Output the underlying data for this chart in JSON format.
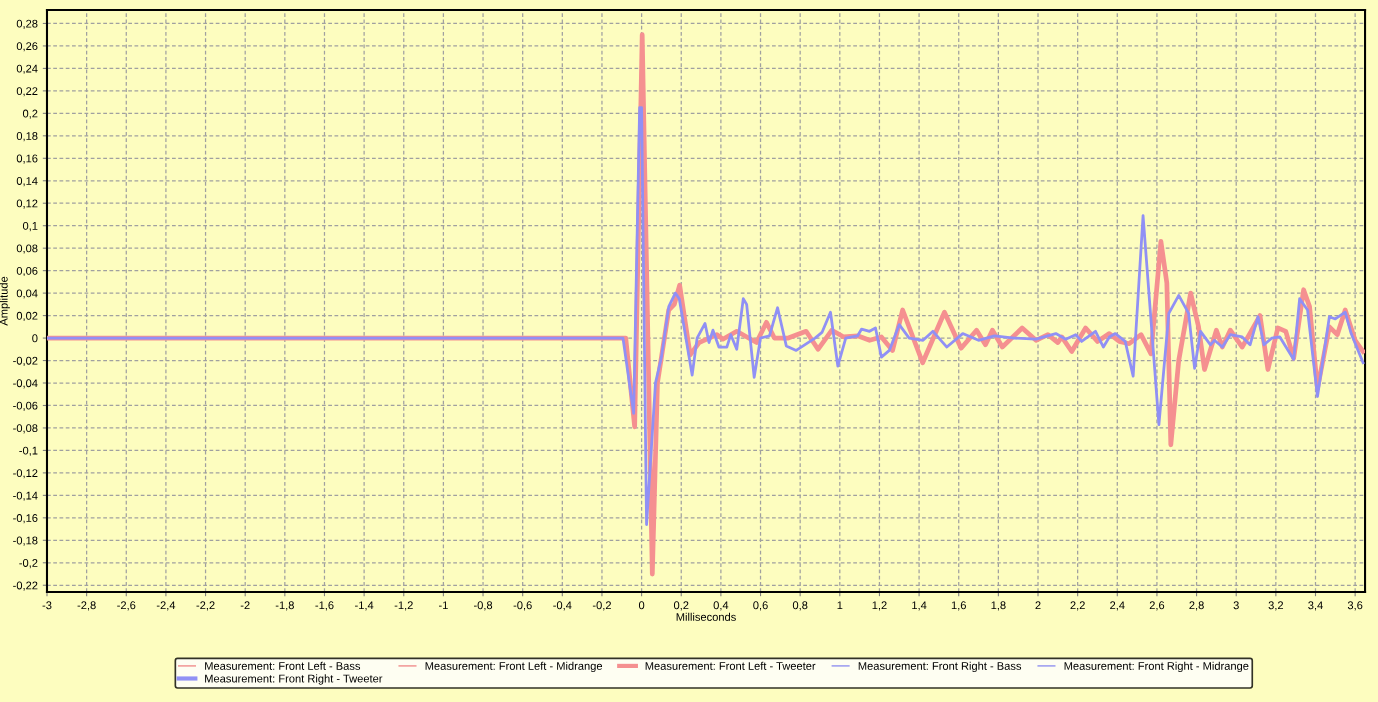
{
  "chart_data": {
    "type": "line",
    "xlabel": "Milliseconds",
    "ylabel": "Amplitude",
    "xlim": [
      -3,
      3.65
    ],
    "ylim": [
      -0.226,
      0.292
    ],
    "xticks": [
      {
        "value": -3,
        "label": "-3"
      },
      {
        "value": -2.8,
        "label": "-2,8"
      },
      {
        "value": -2.6,
        "label": "-2,6"
      },
      {
        "value": -2.4,
        "label": "-2,4"
      },
      {
        "value": -2.2,
        "label": "-2,2"
      },
      {
        "value": -2,
        "label": "-2"
      },
      {
        "value": -1.8,
        "label": "-1,8"
      },
      {
        "value": -1.6,
        "label": "-1,6"
      },
      {
        "value": -1.4,
        "label": "-1,4"
      },
      {
        "value": -1.2,
        "label": "-1,2"
      },
      {
        "value": -1,
        "label": "-1"
      },
      {
        "value": -0.8,
        "label": "-0,8"
      },
      {
        "value": -0.6,
        "label": "-0,6"
      },
      {
        "value": -0.4,
        "label": "-0,4"
      },
      {
        "value": -0.2,
        "label": "-0,2"
      },
      {
        "value": 0,
        "label": "0"
      },
      {
        "value": 0.2,
        "label": "0,2"
      },
      {
        "value": 0.4,
        "label": "0,4"
      },
      {
        "value": 0.6,
        "label": "0,6"
      },
      {
        "value": 0.8,
        "label": "0,8"
      },
      {
        "value": 1,
        "label": "1"
      },
      {
        "value": 1.2,
        "label": "1,2"
      },
      {
        "value": 1.4,
        "label": "1,4"
      },
      {
        "value": 1.6,
        "label": "1,6"
      },
      {
        "value": 1.8,
        "label": "1,8"
      },
      {
        "value": 2,
        "label": "2"
      },
      {
        "value": 2.2,
        "label": "2,2"
      },
      {
        "value": 2.4,
        "label": "2,4"
      },
      {
        "value": 2.6,
        "label": "2,6"
      },
      {
        "value": 2.8,
        "label": "2,8"
      },
      {
        "value": 3,
        "label": "3"
      },
      {
        "value": 3.2,
        "label": "3,2"
      },
      {
        "value": 3.4,
        "label": "3,4"
      },
      {
        "value": 3.6,
        "label": "3,6"
      }
    ],
    "yticks": [
      {
        "value": -0.22,
        "label": "-0,22"
      },
      {
        "value": -0.2,
        "label": "-0,2"
      },
      {
        "value": -0.18,
        "label": "-0,18"
      },
      {
        "value": -0.16,
        "label": "-0,16"
      },
      {
        "value": -0.14,
        "label": "-0,14"
      },
      {
        "value": -0.12,
        "label": "-0,12"
      },
      {
        "value": -0.1,
        "label": "-0,1"
      },
      {
        "value": -0.08,
        "label": "-0,08"
      },
      {
        "value": -0.06,
        "label": "-0,06"
      },
      {
        "value": -0.04,
        "label": "-0,04"
      },
      {
        "value": -0.02,
        "label": "-0,02"
      },
      {
        "value": 0,
        "label": "0"
      },
      {
        "value": 0.02,
        "label": "0,02"
      },
      {
        "value": 0.04,
        "label": "0,04"
      },
      {
        "value": 0.06,
        "label": "0,06"
      },
      {
        "value": 0.08,
        "label": "0,08"
      },
      {
        "value": 0.1,
        "label": "0,1"
      },
      {
        "value": 0.12,
        "label": "0,12"
      },
      {
        "value": 0.14,
        "label": "0,14"
      },
      {
        "value": 0.16,
        "label": "0,16"
      },
      {
        "value": 0.18,
        "label": "0,18"
      },
      {
        "value": 0.2,
        "label": "0,2"
      },
      {
        "value": 0.22,
        "label": "0,22"
      },
      {
        "value": 0.24,
        "label": "0,24"
      },
      {
        "value": 0.26,
        "label": "0,26"
      },
      {
        "value": 0.28,
        "label": "0,28"
      }
    ],
    "grid": true,
    "legend": "bottom",
    "series": [
      {
        "name": "Measurement: Front Left - Bass",
        "color": "#f08c8c"
      },
      {
        "name": "Measurement: Front Left - Midrange",
        "color": "#f08c8c"
      },
      {
        "name": "Measurement: Front Left - Tweeter",
        "color": "#f59090",
        "x": [
          -3,
          -0.08,
          -0.035,
          0.003,
          0.054,
          0.08,
          0.137,
          0.165,
          0.192,
          0.245,
          0.29,
          0.38,
          0.41,
          0.48,
          0.58,
          0.63,
          0.67,
          0.74,
          0.83,
          0.89,
          0.96,
          1.02,
          1.09,
          1.15,
          1.21,
          1.266,
          1.317,
          1.418,
          1.528,
          1.612,
          1.69,
          1.735,
          1.77,
          1.82,
          1.92,
          1.99,
          2.05,
          2.1,
          2.12,
          2.17,
          2.24,
          2.3,
          2.36,
          2.41,
          2.46,
          2.52,
          2.57,
          2.62,
          2.65,
          2.67,
          2.71,
          2.77,
          2.81,
          2.84,
          2.9,
          2.93,
          2.97,
          3.03,
          3.12,
          3.16,
          3.21,
          3.25,
          3.29,
          3.34,
          3.37,
          3.41,
          3.47,
          3.51,
          3.55,
          3.6,
          3.64
        ],
        "values": [
          0,
          0,
          -0.079,
          0.27,
          -0.21,
          -0.04,
          0.025,
          0.03,
          0.047,
          -0.015,
          -0.004,
          0.003,
          -0.001,
          0.006,
          -0.004,
          0.014,
          0,
          0,
          0.006,
          -0.01,
          0.007,
          0.001,
          0.002,
          -0.002,
          0.001,
          -0.011,
          0.025,
          -0.022,
          0.023,
          -0.009,
          0.007,
          -0.006,
          0.007,
          -0.008,
          0.009,
          -0.002,
          0.003,
          -0.004,
          0.001,
          -0.012,
          0.009,
          -0.003,
          0.004,
          -0.003,
          -0.005,
          0.003,
          -0.014,
          0.086,
          0.049,
          -0.095,
          -0.02,
          0.04,
          0.01,
          -0.028,
          0.007,
          -0.008,
          0.007,
          -0.008,
          0.02,
          -0.028,
          0.009,
          0.006,
          -0.018,
          0.043,
          0.028,
          -0.045,
          0.01,
          0.003,
          0.025,
          -0.002,
          -0.012
        ]
      },
      {
        "name": "Measurement: Front Right - Bass",
        "color": "#9090f0"
      },
      {
        "name": "Measurement: Front Right - Midrange",
        "color": "#9090f0"
      },
      {
        "name": "Measurement: Front Right - Tweeter",
        "color": "#9090f5",
        "x": [
          -3,
          -0.094,
          -0.04,
          -0.01,
          0.0,
          0.025,
          0.07,
          0.1,
          0.137,
          0.17,
          0.19,
          0.255,
          0.28,
          0.32,
          0.34,
          0.36,
          0.39,
          0.43,
          0.45,
          0.48,
          0.513,
          0.53,
          0.568,
          0.6,
          0.645,
          0.686,
          0.73,
          0.78,
          0.875,
          0.91,
          0.953,
          0.99,
          1.03,
          1.09,
          1.11,
          1.15,
          1.18,
          1.21,
          1.25,
          1.3,
          1.35,
          1.42,
          1.47,
          1.54,
          1.62,
          1.7,
          1.78,
          1.88,
          1.99,
          2.09,
          2.14,
          2.19,
          2.22,
          2.29,
          2.33,
          2.36,
          2.39,
          2.44,
          2.48,
          2.53,
          2.61,
          2.66,
          2.71,
          2.76,
          2.79,
          2.82,
          2.87,
          2.89,
          2.93,
          2.97,
          3.03,
          3.07,
          3.11,
          3.14,
          3.18,
          3.22,
          3.29,
          3.32,
          3.36,
          3.41,
          3.47,
          3.5,
          3.55,
          3.58,
          3.64
        ],
        "values": [
          0,
          0,
          -0.067,
          0.205,
          0.205,
          -0.166,
          -0.04,
          -0.017,
          0.028,
          0.04,
          0.035,
          -0.033,
          0,
          0.013,
          -0.004,
          0.007,
          -0.008,
          -0.008,
          0.003,
          -0.01,
          0.035,
          0.03,
          -0.035,
          0,
          0.002,
          0.027,
          -0.007,
          -0.011,
          0,
          0.005,
          0.023,
          -0.025,
          0,
          0.002,
          0.008,
          0.006,
          0.009,
          -0.017,
          -0.011,
          0.012,
          0,
          -0.002,
          0.006,
          -0.008,
          0.004,
          -0.002,
          0.002,
          0,
          -0.001,
          0.004,
          -0.001,
          0.003,
          -0.003,
          0.006,
          -0.008,
          0.001,
          0.004,
          -0.003,
          -0.034,
          0.109,
          -0.077,
          0.022,
          0.038,
          0.022,
          -0.027,
          0.006,
          -0.006,
          -0.002,
          -0.008,
          0.003,
          0.001,
          -0.006,
          0.019,
          -0.006,
          0,
          0.001,
          -0.019,
          0.035,
          0.025,
          -0.052,
          0.019,
          0.017,
          0.023,
          0.004,
          -0.022
        ]
      }
    ]
  }
}
